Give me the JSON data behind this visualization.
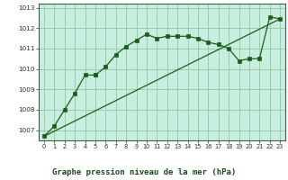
{
  "title": "Graphe pression niveau de la mer (hPa)",
  "bg_color": "#c8eee0",
  "plot_bg_color": "#c8eee0",
  "label_bg_color": "#ffffff",
  "grid_color": "#99ccaa",
  "line_color": "#1a5e1a",
  "marker_color": "#1a5e1a",
  "xlim": [
    -0.5,
    23.5
  ],
  "ylim": [
    1006.5,
    1013.2
  ],
  "xticks": [
    0,
    1,
    2,
    3,
    4,
    5,
    6,
    7,
    8,
    9,
    10,
    11,
    12,
    13,
    14,
    15,
    16,
    17,
    18,
    19,
    20,
    21,
    22,
    23
  ],
  "yticks": [
    1007,
    1008,
    1009,
    1010,
    1011,
    1012,
    1013
  ],
  "series1_x": [
    0,
    1,
    2,
    3,
    4,
    5,
    5,
    6,
    7,
    8,
    9,
    10,
    11,
    12,
    13,
    14,
    15,
    16,
    17,
    18,
    19,
    20,
    21,
    22,
    23
  ],
  "series1_y": [
    1006.7,
    1007.2,
    1008.0,
    1008.8,
    1009.7,
    1009.7,
    1009.7,
    1010.1,
    1010.7,
    1011.1,
    1011.4,
    1011.7,
    1011.5,
    1011.6,
    1011.6,
    1011.6,
    1011.5,
    1011.3,
    1011.2,
    1011.0,
    1010.4,
    1010.5,
    1010.5,
    1012.55,
    1012.45
  ],
  "series2_x": [
    0,
    23
  ],
  "series2_y": [
    1006.7,
    1012.45
  ]
}
